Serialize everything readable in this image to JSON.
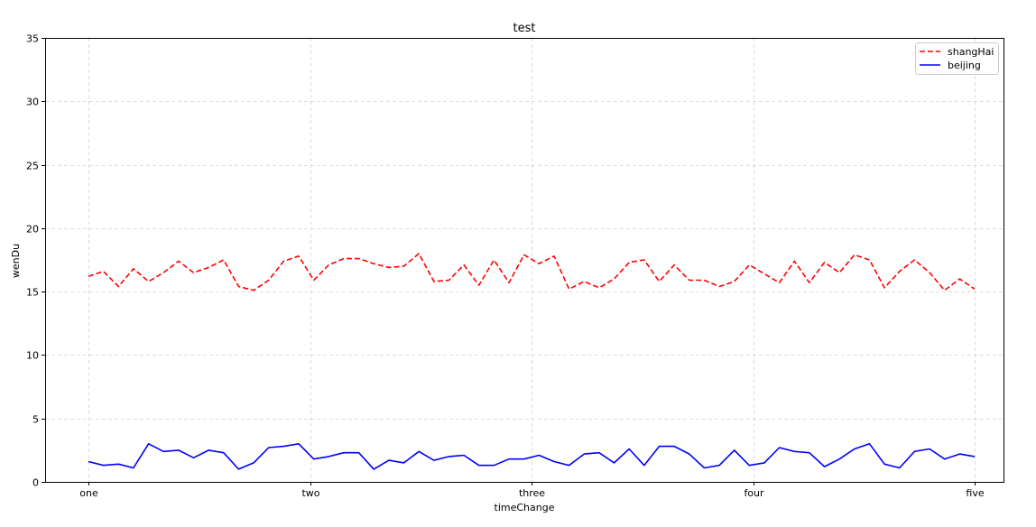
{
  "chart_data": {
    "type": "line",
    "title": "test",
    "xlabel": "timeChange",
    "ylabel": "wenDu",
    "x_tick_labels": [
      "one",
      "two",
      "three",
      "four",
      "five"
    ],
    "x_count": 60,
    "ylim": [
      0,
      35
    ],
    "y_ticks": [
      0,
      5,
      10,
      15,
      20,
      25,
      30,
      35
    ],
    "grid": true,
    "legend_position": "top-right",
    "series": [
      {
        "name": "shangHai",
        "color": "#ff0000",
        "style": "dashed",
        "values": [
          16.2,
          16.6,
          15.4,
          16.8,
          15.8,
          16.5,
          17.4,
          16.5,
          16.9,
          17.5,
          15.4,
          15.1,
          15.9,
          17.4,
          17.8,
          15.9,
          17.1,
          17.6,
          17.6,
          17.2,
          16.9,
          17.0,
          18.0,
          15.8,
          15.9,
          17.1,
          15.5,
          17.5,
          15.7,
          17.9,
          17.2,
          17.8,
          15.2,
          15.8,
          15.3,
          16.0,
          17.3,
          17.5,
          15.8,
          17.1,
          15.9,
          15.9,
          15.4,
          15.8,
          17.1,
          16.4,
          15.7,
          17.4,
          15.7,
          17.3,
          16.5,
          17.9,
          17.5,
          15.3,
          16.6,
          17.5,
          16.5,
          15.1,
          16.0,
          15.2
        ]
      },
      {
        "name": "beijing",
        "color": "#0000ff",
        "style": "solid",
        "values": [
          1.6,
          1.3,
          1.4,
          1.1,
          3.0,
          2.4,
          2.5,
          1.9,
          2.5,
          2.3,
          1.0,
          1.5,
          2.7,
          2.8,
          3.0,
          1.8,
          2.0,
          2.3,
          2.3,
          1.0,
          1.7,
          1.5,
          2.4,
          1.7,
          2.0,
          2.1,
          1.3,
          1.3,
          1.8,
          1.8,
          2.1,
          1.6,
          1.3,
          2.2,
          2.3,
          1.5,
          2.6,
          1.3,
          2.8,
          2.8,
          2.2,
          1.1,
          1.3,
          2.5,
          1.3,
          1.5,
          2.7,
          2.4,
          2.3,
          1.2,
          1.8,
          2.6,
          3.0,
          1.4,
          1.1,
          2.4,
          2.6,
          1.8,
          2.2,
          2.0
        ]
      }
    ]
  }
}
